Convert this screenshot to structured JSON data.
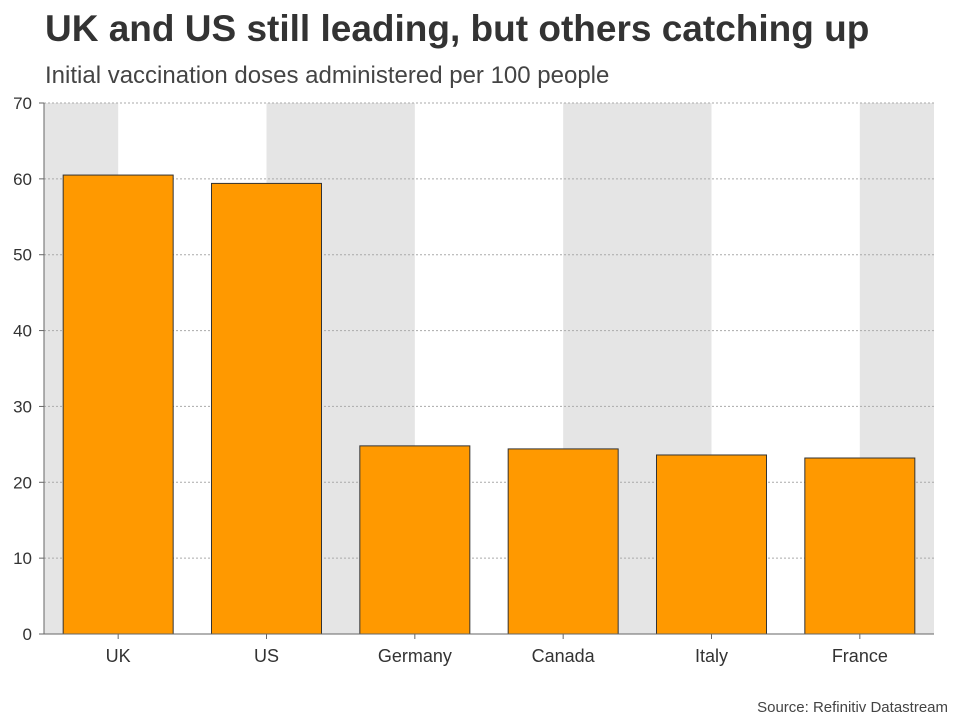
{
  "title": "UK and US still leading, but others catching up",
  "subtitle": "Initial vaccination doses administered per 100 people",
  "source": "Source: Refinitiv Datastream",
  "colors": {
    "bar": "#ff9900",
    "bar_stroke": "#333333",
    "band": "#e5e5e5",
    "grid": "#aaaaaa",
    "axis": "#666666",
    "text": "#333333"
  },
  "chart_data": {
    "type": "bar",
    "title": "UK and US still leading, but others catching up",
    "subtitle": "Initial vaccination doses administered per 100 people",
    "xlabel": "",
    "ylabel": "",
    "categories": [
      "UK",
      "US",
      "Germany",
      "Canada",
      "Italy",
      "France"
    ],
    "values": [
      60.5,
      59.4,
      24.8,
      24.4,
      23.6,
      23.2
    ],
    "ylim": [
      0,
      70
    ],
    "yticks": [
      0,
      10,
      20,
      30,
      40,
      50,
      60,
      70
    ],
    "grid": true
  }
}
